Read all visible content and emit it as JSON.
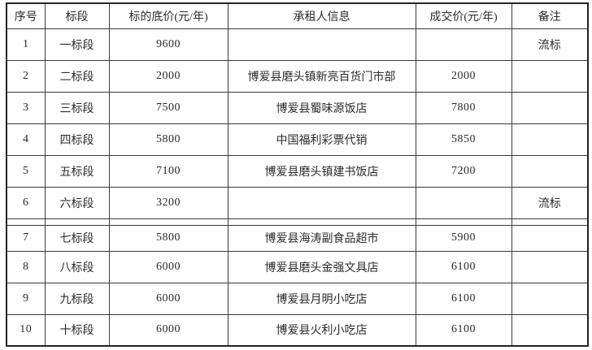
{
  "table": {
    "headers": [
      "序号",
      "标段",
      "标的底价(元/年)",
      "承租人信息",
      "成交价(元/年)",
      "备注"
    ],
    "header_keys": [
      "no",
      "section",
      "base_price",
      "tenant",
      "deal_price",
      "note"
    ],
    "section_break_after_row_index": 5,
    "rows": [
      {
        "no": "1",
        "section": "一标段",
        "base_price": "9600",
        "tenant": "",
        "deal_price": "",
        "note": "流标"
      },
      {
        "no": "2",
        "section": "二标段",
        "base_price": "2000",
        "tenant": "博爱县磨头镇新亮百货门市部",
        "deal_price": "2000",
        "note": ""
      },
      {
        "no": "3",
        "section": "三标段",
        "base_price": "7500",
        "tenant": "博爱县蜀味源饭店",
        "deal_price": "7800",
        "note": ""
      },
      {
        "no": "4",
        "section": "四标段",
        "base_price": "5800",
        "tenant": "中国福利彩票代销",
        "deal_price": "5850",
        "note": ""
      },
      {
        "no": "5",
        "section": "五标段",
        "base_price": "7100",
        "tenant": "博爱县磨头镇建书饭店",
        "deal_price": "7200",
        "note": ""
      },
      {
        "no": "6",
        "section": "六标段",
        "base_price": "3200",
        "tenant": "",
        "deal_price": "",
        "note": "流标"
      },
      {
        "no": "7",
        "section": "七标段",
        "base_price": "5800",
        "tenant": "博爱县海涛副食品超市",
        "deal_price": "5900",
        "note": ""
      },
      {
        "no": "8",
        "section": "八标段",
        "base_price": "6000",
        "tenant": "博爱县磨头金强文具店",
        "deal_price": "6100",
        "note": ""
      },
      {
        "no": "9",
        "section": "九标段",
        "base_price": "6000",
        "tenant": "博爱县月明小吃店",
        "deal_price": "6100",
        "note": ""
      },
      {
        "no": "10",
        "section": "十标段",
        "base_price": "6000",
        "tenant": "博爱县火利小吃店",
        "deal_price": "6100",
        "note": ""
      }
    ]
  }
}
